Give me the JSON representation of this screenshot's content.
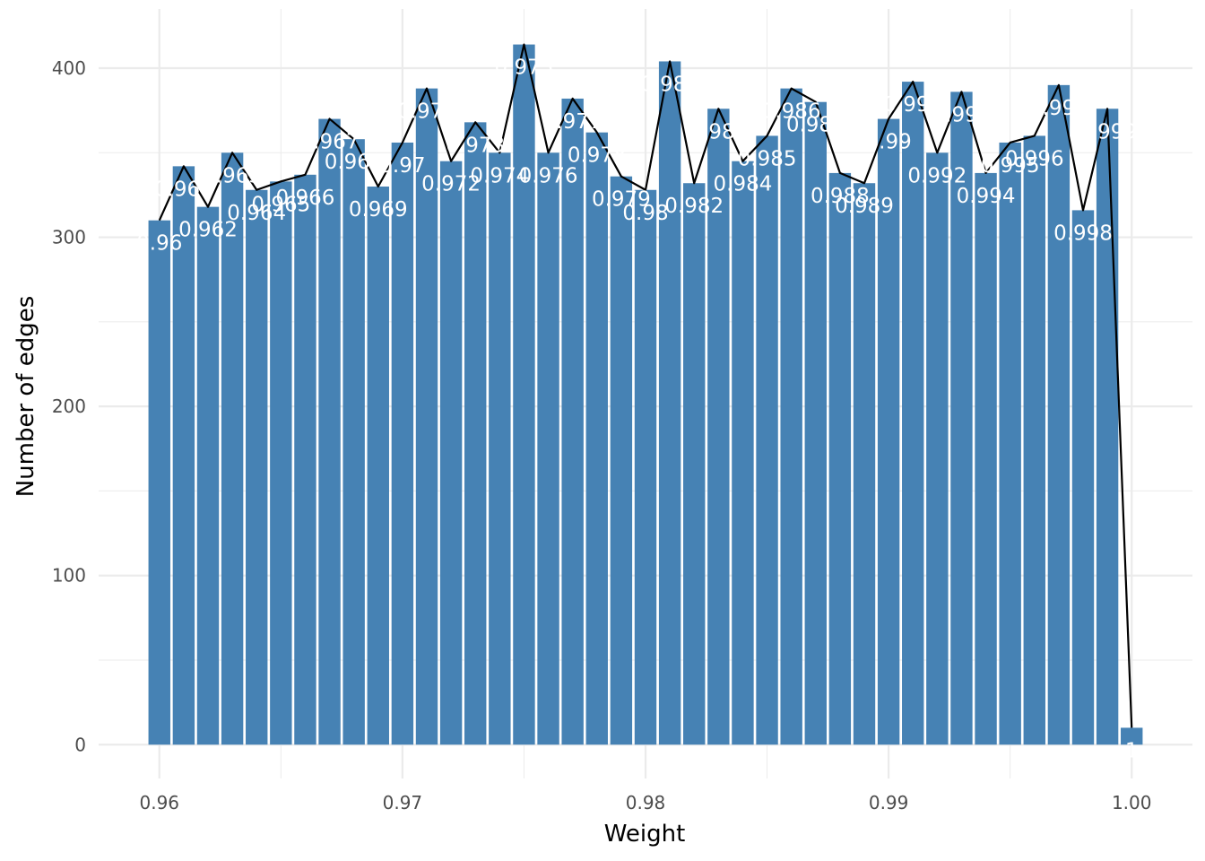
{
  "chart_data": {
    "type": "bar",
    "title": "",
    "xlabel": "Weight",
    "ylabel": "Number of edges",
    "xlim": [
      0.9575,
      1.0025
    ],
    "ylim": [
      -20,
      435
    ],
    "x_ticks": [
      0.96,
      0.97,
      0.98,
      0.99,
      1.0
    ],
    "x_tick_labels": [
      "0.96",
      "0.97",
      "0.98",
      "0.99",
      "1.00"
    ],
    "y_ticks": [
      0,
      100,
      200,
      300,
      400
    ],
    "y_tick_labels": [
      "0",
      "100",
      "200",
      "300",
      "400"
    ],
    "grid": true,
    "legend": "none",
    "bar_color": "#4682B4",
    "line_color": "#000000",
    "label_color": "#ffffff",
    "x": [
      0.96,
      0.961,
      0.962,
      0.963,
      0.964,
      0.965,
      0.966,
      0.967,
      0.968,
      0.969,
      0.97,
      0.971,
      0.972,
      0.973,
      0.974,
      0.975,
      0.976,
      0.977,
      0.978,
      0.979,
      0.98,
      0.981,
      0.982,
      0.983,
      0.984,
      0.985,
      0.986,
      0.987,
      0.988,
      0.989,
      0.99,
      0.991,
      0.992,
      0.993,
      0.994,
      0.995,
      0.996,
      0.997,
      0.998,
      0.999,
      1.0
    ],
    "values": [
      310,
      342,
      318,
      350,
      328,
      333,
      337,
      370,
      358,
      330,
      356,
      388,
      345,
      368,
      350,
      414,
      350,
      382,
      362,
      336,
      328,
      404,
      332,
      376,
      345,
      360,
      388,
      380,
      338,
      332,
      370,
      392,
      350,
      386,
      338,
      356,
      360,
      390,
      316,
      376,
      10
    ],
    "labels": [
      "0.96",
      "0.961",
      "0.962",
      "0.963",
      "0.964",
      "0.965",
      "0.966",
      "0.967",
      "0.968",
      "0.969",
      "0.97",
      "0.971",
      "0.972",
      "0.973",
      "0.974",
      "0.975",
      "0.976",
      "0.977",
      "0.978",
      "0.979",
      "0.98",
      "0.981",
      "0.982",
      "0.983",
      "0.984",
      "0.985",
      "0.986",
      "0.987",
      "0.988",
      "0.989",
      "0.99",
      "0.991",
      "0.992",
      "0.993",
      "0.994",
      "0.995",
      "0.996",
      "0.997",
      "0.998",
      "0.999",
      "1"
    ]
  }
}
